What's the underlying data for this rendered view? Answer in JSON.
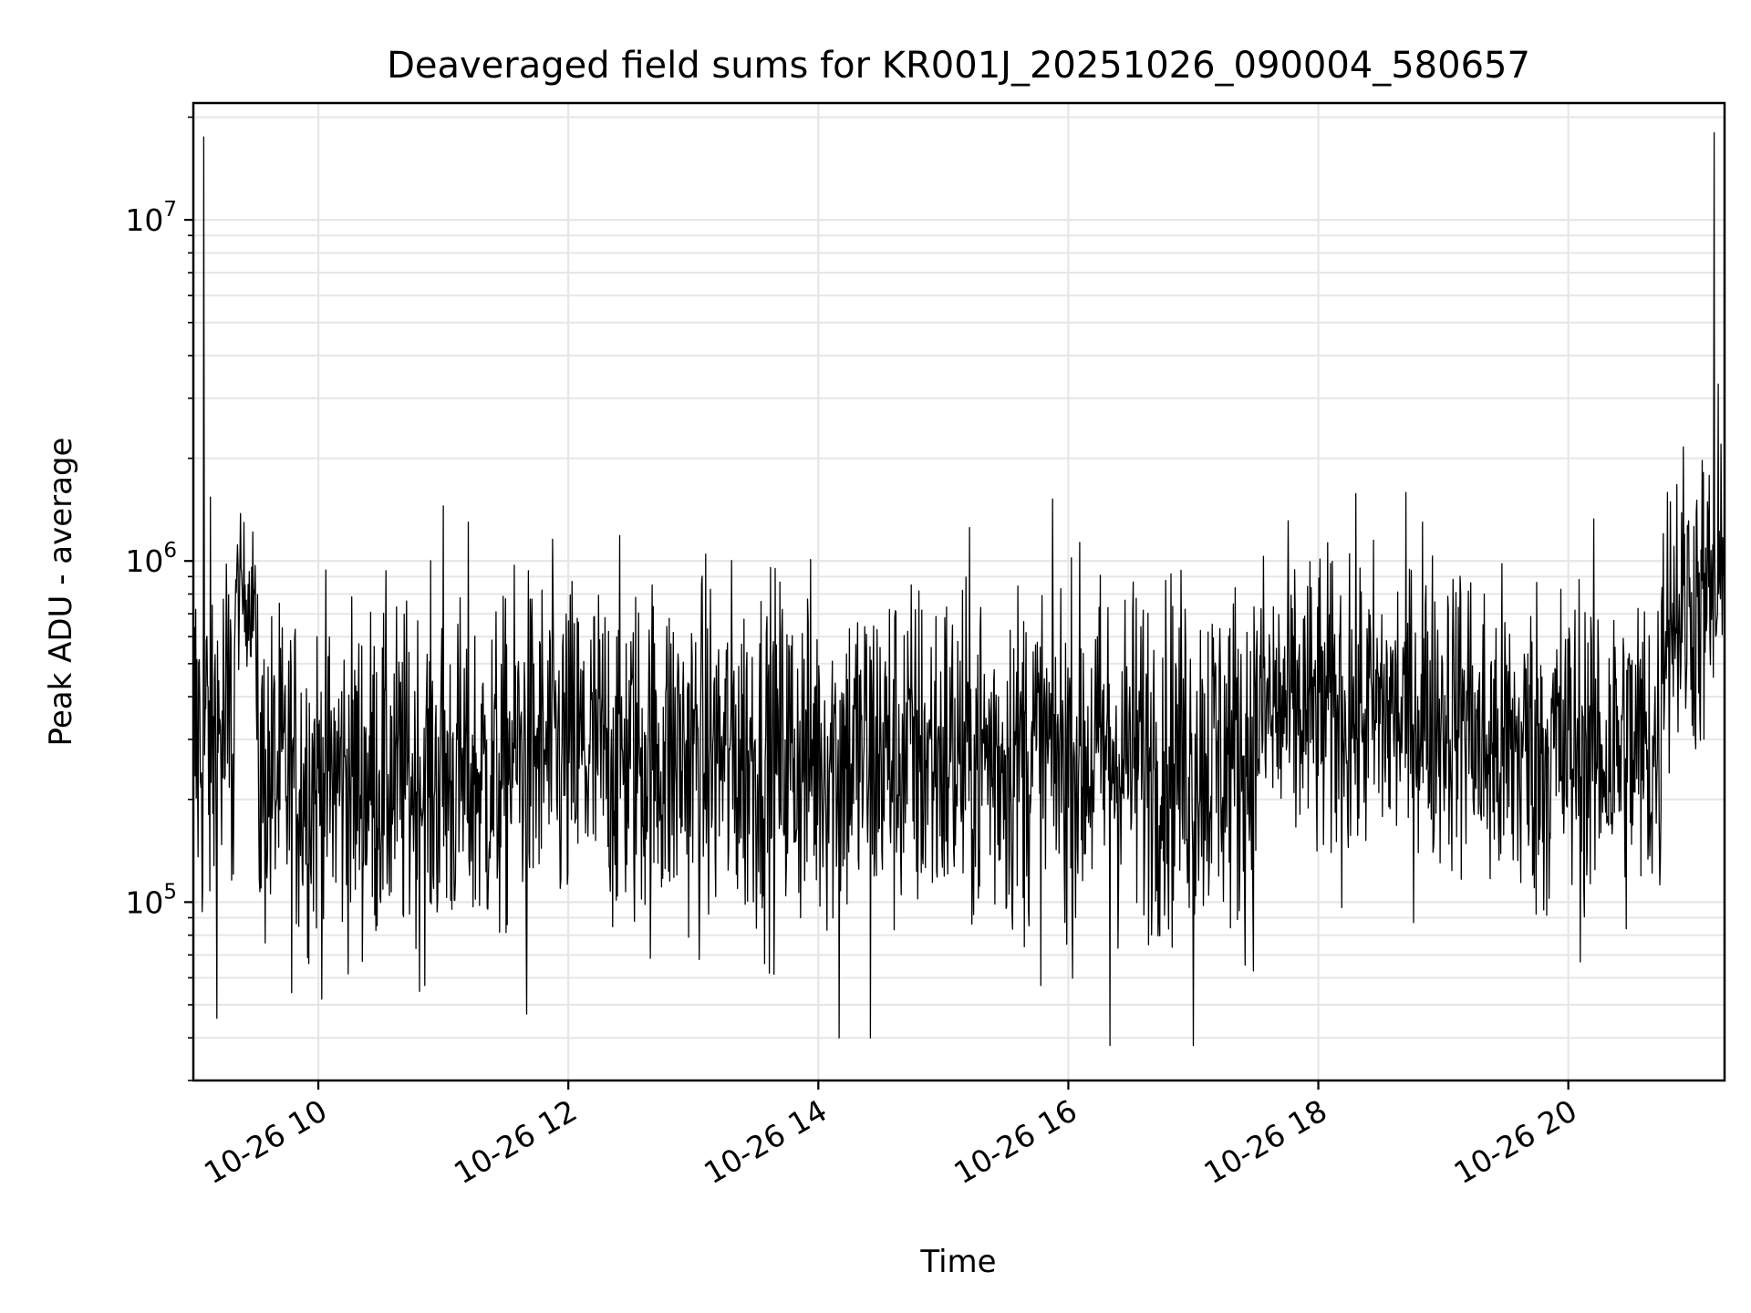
{
  "chart_data": {
    "type": "line",
    "title": "Deaveraged field sums for KR001J_20251026_090004_580657",
    "xlabel": "Time",
    "ylabel": "Peak ADU - average",
    "yscale": "log",
    "ylim": [
      30000,
      22000000
    ],
    "xlim": [
      "2025-10-26 09:00",
      "2025-10-26 21:15"
    ],
    "grid": true,
    "line_color": "#000000",
    "x_ticks": [
      {
        "time": "2025-10-26 10:00",
        "label": "10-26 10"
      },
      {
        "time": "2025-10-26 12:00",
        "label": "10-26 12"
      },
      {
        "time": "2025-10-26 14:00",
        "label": "10-26 14"
      },
      {
        "time": "2025-10-26 16:00",
        "label": "10-26 16"
      },
      {
        "time": "2025-10-26 18:00",
        "label": "10-26 18"
      },
      {
        "time": "2025-10-26 20:00",
        "label": "10-26 20"
      }
    ],
    "y_ticks": [
      {
        "value": 100000,
        "base": "10",
        "exp": "5"
      },
      {
        "value": 1000000,
        "base": "10",
        "exp": "6"
      },
      {
        "value": 10000000,
        "base": "10",
        "exp": "7"
      }
    ],
    "series": [
      {
        "values_by_segment": [
          {
            "start": "2025-10-26 09:00",
            "end": "2025-10-26 09:20",
            "median": 300000,
            "spread": 0.75
          },
          {
            "start": "2025-10-26 09:20",
            "end": "2025-10-26 09:30",
            "median": 800000,
            "spread": 0.25
          },
          {
            "start": "2025-10-26 09:30",
            "end": "2025-10-26 11:30",
            "median": 230000,
            "spread": 0.6
          },
          {
            "start": "2025-10-26 11:30",
            "end": "2025-10-26 17:30",
            "median": 270000,
            "spread": 0.62
          },
          {
            "start": "2025-10-26 17:30",
            "end": "2025-10-26 19:15",
            "median": 360000,
            "spread": 0.55
          },
          {
            "start": "2025-10-26 19:15",
            "end": "2025-10-26 20:45",
            "median": 280000,
            "spread": 0.6
          },
          {
            "start": "2025-10-26 20:45",
            "end": "2025-10-26 21:15",
            "median": 750000,
            "spread": 0.55
          }
        ],
        "spikes": [
          {
            "time": "2025-10-26 09:05",
            "value": 17500000
          },
          {
            "time": "2025-10-26 11:00",
            "value": 1450000
          },
          {
            "time": "2025-10-26 11:12",
            "value": 1300000
          },
          {
            "time": "2025-10-26 18:15",
            "value": 1050000
          },
          {
            "time": "2025-10-26 18:50",
            "value": 1300000
          },
          {
            "time": "2025-10-26 21:10",
            "value": 18000000
          },
          {
            "time": "2025-10-26 21:12",
            "value": 3300000
          },
          {
            "time": "2025-10-26 11:40",
            "value": 47000
          },
          {
            "time": "2025-10-26 14:10",
            "value": 40000
          },
          {
            "time": "2025-10-26 14:25",
            "value": 40000
          },
          {
            "time": "2025-10-26 16:20",
            "value": 38000
          },
          {
            "time": "2025-10-26 17:00",
            "value": 38000
          }
        ]
      }
    ]
  }
}
